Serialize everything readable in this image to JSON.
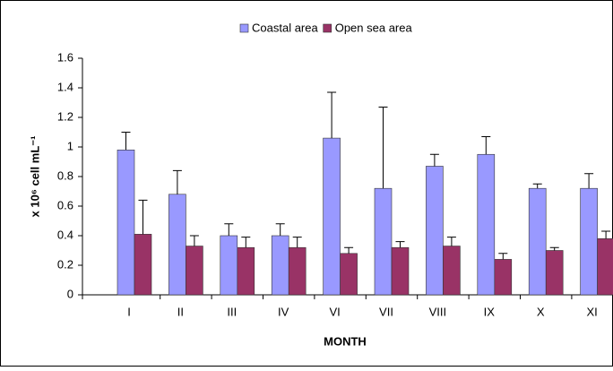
{
  "chart_data": {
    "type": "bar",
    "x_label": "MONTH",
    "y_label": "x 10⁶ cell mL⁻¹",
    "categories": [
      "I",
      "II",
      "III",
      "IV",
      "VI",
      "VII",
      "VIII",
      "IX",
      "X",
      "XI"
    ],
    "series": [
      {
        "name": "Coastal area",
        "color": "#9999ff",
        "values": [
          0.98,
          0.68,
          0.4,
          0.4,
          1.06,
          0.72,
          0.87,
          0.95,
          0.72,
          0.72
        ],
        "errors": [
          0.12,
          0.16,
          0.08,
          0.08,
          0.31,
          0.55,
          0.08,
          0.12,
          0.03,
          0.1
        ]
      },
      {
        "name": "Open sea area",
        "color": "#993366",
        "values": [
          0.41,
          0.33,
          0.32,
          0.32,
          0.28,
          0.32,
          0.33,
          0.24,
          0.3,
          0.38
        ],
        "errors": [
          0.23,
          0.07,
          0.07,
          0.07,
          0.04,
          0.04,
          0.06,
          0.04,
          0.02,
          0.05
        ]
      }
    ],
    "ylim": [
      0,
      1.6
    ],
    "yticks": [
      0,
      0.2,
      0.4,
      0.6,
      0.8,
      1,
      1.2,
      1.4,
      1.6
    ],
    "grid": false,
    "legend": "top"
  }
}
